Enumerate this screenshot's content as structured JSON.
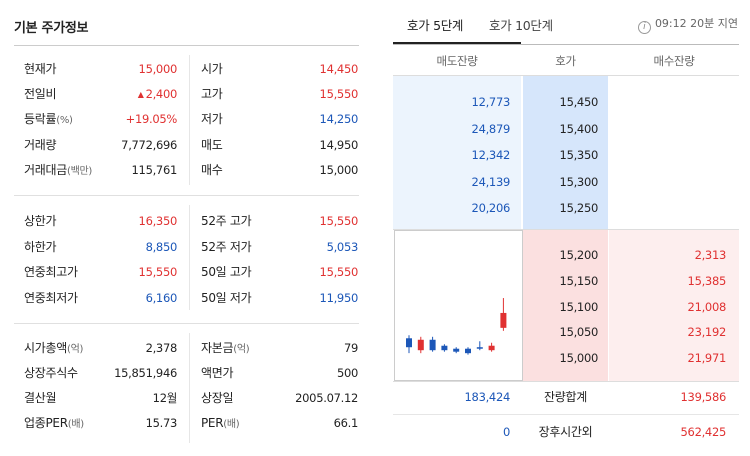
{
  "left": {
    "title": "기본 주가정보",
    "section1": [
      {
        "label": "현재가",
        "unit": "",
        "value": "15,000",
        "value_color": "red",
        "label2": "시가",
        "unit2": "",
        "value2": "14,450",
        "value2_color": "red"
      },
      {
        "label": "전일비",
        "unit": "",
        "value": "2,400",
        "arrow": "▲",
        "value_color": "red",
        "label2": "고가",
        "unit2": "",
        "value2": "15,550",
        "value2_color": "red"
      },
      {
        "label": "등락률",
        "unit": "(%)",
        "value": "+19.05%",
        "value_color": "red",
        "label2": "저가",
        "unit2": "",
        "value2": "14,250",
        "value2_color": "blue"
      },
      {
        "label": "거래량",
        "unit": "",
        "value": "7,772,696",
        "value_color": "dark",
        "label2": "매도",
        "unit2": "",
        "value2": "14,950",
        "value2_color": "dark"
      },
      {
        "label": "거래대금",
        "unit": "(백만)",
        "value": "115,761",
        "value_color": "dark",
        "label2": "매수",
        "unit2": "",
        "value2": "15,000",
        "value2_color": "dark"
      }
    ],
    "section2": [
      {
        "label": "상한가",
        "unit": "",
        "value": "16,350",
        "value_color": "red",
        "label2": "52주 고가",
        "unit2": "",
        "value2": "15,550",
        "value2_color": "red"
      },
      {
        "label": "하한가",
        "unit": "",
        "value": "8,850",
        "value_color": "blue",
        "label2": "52주 저가",
        "unit2": "",
        "value2": "5,053",
        "value2_color": "blue"
      },
      {
        "label": "연중최고가",
        "unit": "",
        "value": "15,550",
        "value_color": "red",
        "label2": "50일 고가",
        "unit2": "",
        "value2": "15,550",
        "value2_color": "red"
      },
      {
        "label": "연중최저가",
        "unit": "",
        "value": "6,160",
        "value_color": "blue",
        "label2": "50일 저가",
        "unit2": "",
        "value2": "11,950",
        "value2_color": "blue"
      }
    ],
    "section3": [
      {
        "label": "시가총액",
        "unit": "(억)",
        "value": "2,378",
        "value_color": "dark",
        "label2": "자본금",
        "unit2": "(억)",
        "value2": "79",
        "value2_color": "dark"
      },
      {
        "label": "상장주식수",
        "unit": "",
        "value": "15,851,946",
        "value_color": "dark",
        "label2": "액면가",
        "unit2": "",
        "value2": "500",
        "value2_color": "dark"
      },
      {
        "label": "결산월",
        "unit": "",
        "value": "12월",
        "value_color": "dark",
        "label2": "상장일",
        "unit2": "",
        "value2": "2005.07.12",
        "value2_color": "dark"
      },
      {
        "label": "업종PER",
        "unit": "(배)",
        "value": "15.73",
        "value_color": "dark",
        "label2": "PER",
        "unit2": "(배)",
        "value2": "66.1",
        "value2_color": "dark"
      }
    ]
  },
  "right": {
    "tab_active": "호가 5단계",
    "tab_inactive": "호가 10단계",
    "info_icon": "i",
    "delay_text": "09:12 20분 지연",
    "headers": {
      "ask": "매도잔량",
      "price": "호가",
      "bid": "매수잔량"
    },
    "asks": [
      {
        "qty": "12,773",
        "price": "15,450"
      },
      {
        "qty": "24,879",
        "price": "15,400"
      },
      {
        "qty": "12,342",
        "price": "15,350"
      },
      {
        "qty": "24,139",
        "price": "15,300"
      },
      {
        "qty": "20,206",
        "price": "15,250"
      }
    ],
    "bids": [
      {
        "price": "15,200",
        "qty": "2,313"
      },
      {
        "price": "15,150",
        "qty": "15,385"
      },
      {
        "price": "15,100",
        "qty": "21,008"
      },
      {
        "price": "15,050",
        "qty": "23,192"
      },
      {
        "price": "15,000",
        "qty": "21,971"
      }
    ],
    "totals": [
      {
        "ask": "183,424",
        "label": "잔량합계",
        "bid": "139,586"
      },
      {
        "ask": "0",
        "label": "장후시간외",
        "bid": "562,425"
      }
    ],
    "mini_chart_candles": [
      {
        "color": "#1c57b8",
        "o": 0.22,
        "c": 0.28,
        "h": 0.3,
        "l": 0.18
      },
      {
        "color": "#e03131",
        "o": 0.2,
        "c": 0.27,
        "h": 0.29,
        "l": 0.18
      },
      {
        "color": "#1c57b8",
        "o": 0.27,
        "c": 0.2,
        "h": 0.29,
        "l": 0.19
      },
      {
        "color": "#1c57b8",
        "o": 0.23,
        "c": 0.2,
        "h": 0.24,
        "l": 0.19
      },
      {
        "color": "#1c57b8",
        "o": 0.21,
        "c": 0.19,
        "h": 0.22,
        "l": 0.18
      },
      {
        "color": "#1c57b8",
        "o": 0.21,
        "c": 0.18,
        "h": 0.22,
        "l": 0.17
      },
      {
        "color": "#1c57b8",
        "o": 0.22,
        "c": 0.22,
        "h": 0.26,
        "l": 0.2
      },
      {
        "color": "#e03131",
        "o": 0.2,
        "c": 0.23,
        "h": 0.25,
        "l": 0.19
      },
      {
        "color": "#e03131",
        "o": 0.35,
        "c": 0.45,
        "h": 0.55,
        "l": 0.33
      }
    ]
  }
}
